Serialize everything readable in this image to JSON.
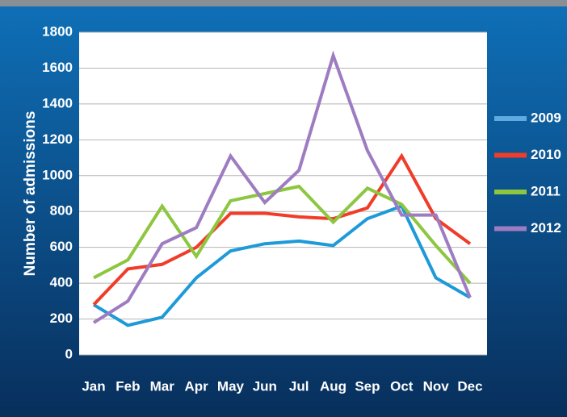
{
  "chart_data": {
    "type": "line",
    "y_label": "Number of admissions",
    "categories": [
      "Jan",
      "Feb",
      "Mar",
      "Apr",
      "May",
      "Jun",
      "Jul",
      "Aug",
      "Sep",
      "Oct",
      "Nov",
      "Dec"
    ],
    "series": [
      {
        "name": "2009",
        "color": "#1e9ad8",
        "values": [
          280,
          165,
          210,
          430,
          580,
          620,
          635,
          610,
          760,
          830,
          430,
          320
        ]
      },
      {
        "name": "2010",
        "color": "#f03c28",
        "values": [
          280,
          480,
          505,
          600,
          790,
          790,
          770,
          760,
          820,
          1110,
          760,
          620
        ]
      },
      {
        "name": "2011",
        "color": "#8dc63f",
        "values": [
          430,
          530,
          830,
          550,
          860,
          900,
          940,
          740,
          930,
          840,
          610,
          400
        ]
      },
      {
        "name": "2012",
        "color": "#9e7cc1",
        "values": [
          180,
          300,
          620,
          710,
          1110,
          850,
          1030,
          1670,
          1140,
          780,
          780,
          320
        ]
      }
    ],
    "ylim": [
      0,
      1800
    ],
    "yticks": [
      0,
      200,
      400,
      600,
      800,
      1000,
      1200,
      1400,
      1600,
      1800
    ],
    "grid": true,
    "legend": "right"
  }
}
